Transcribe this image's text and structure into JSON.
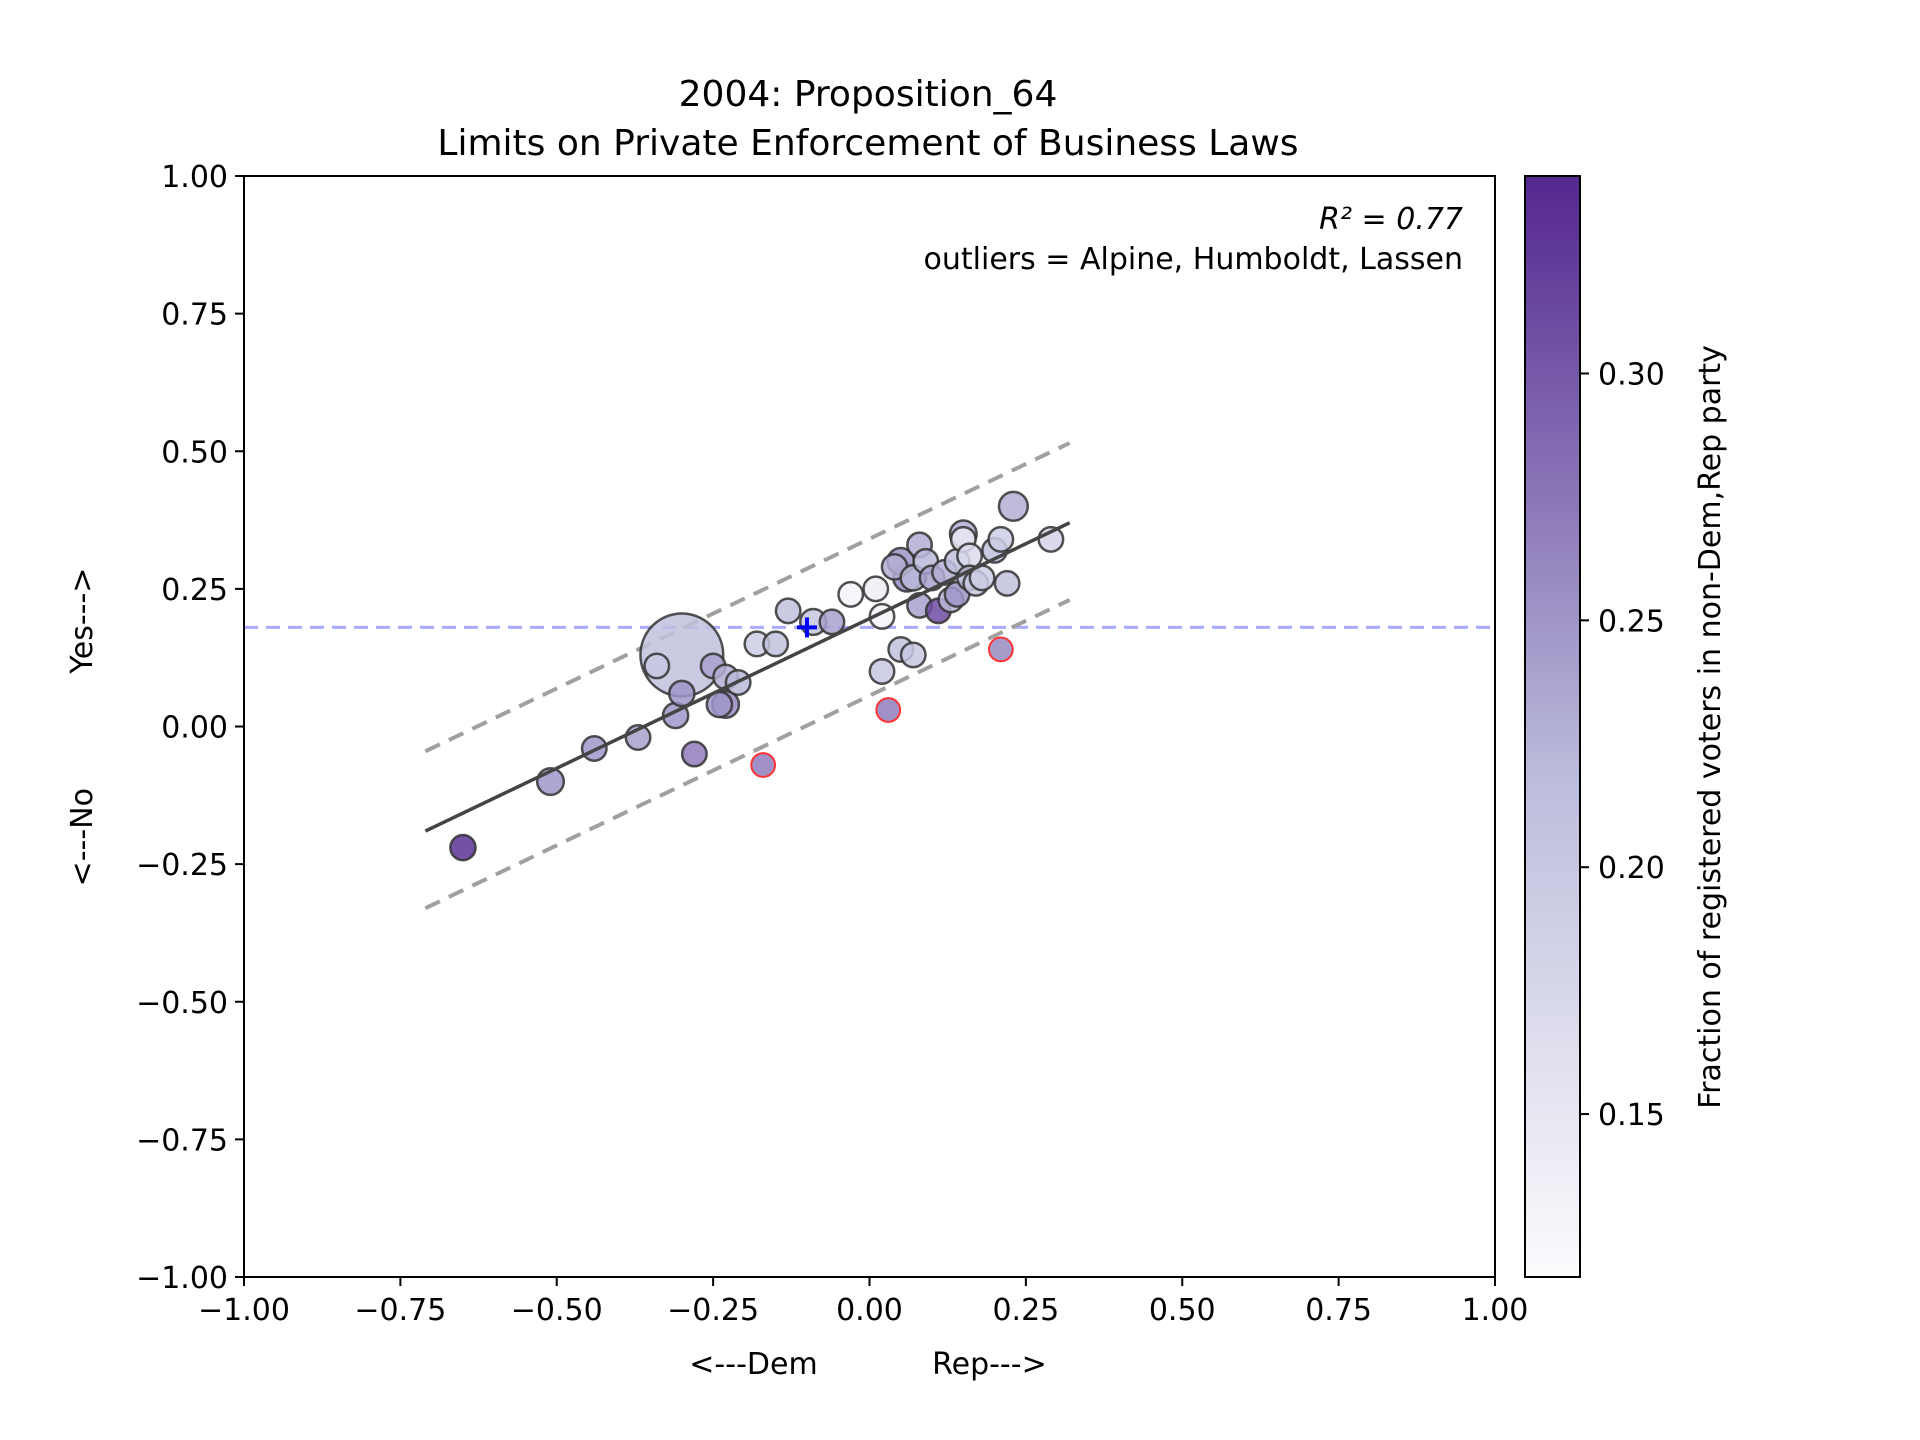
{
  "chart_data": {
    "type": "scatter",
    "title_line1": "2004: Proposition_64",
    "title_line2": "Limits on Private Enforcement of Business Laws",
    "xlabel": "<---Dem            Rep--->",
    "ylabel": "<---No            Yes--->",
    "xlim": [
      -1.0,
      1.0
    ],
    "ylim": [
      -1.0,
      1.0
    ],
    "xticks": [
      "−1.00",
      "−0.75",
      "−0.50",
      "−0.25",
      "0.00",
      "0.25",
      "0.50",
      "0.75",
      "1.00"
    ],
    "yticks": [
      "−1.00",
      "−0.75",
      "−0.50",
      "−0.25",
      "0.00",
      "0.25",
      "0.50",
      "0.75",
      "1.00"
    ],
    "xtick_values": [
      -1,
      -0.75,
      -0.5,
      -0.25,
      0,
      0.25,
      0.5,
      0.75,
      1
    ],
    "ytick_values": [
      -1,
      -0.75,
      -0.5,
      -0.25,
      0,
      0.25,
      0.5,
      0.75,
      1
    ],
    "annotation_r2": "R² = 0.77",
    "annotation_outliers": "outliers = Alpine, Humboldt, Lassen",
    "state_line_y": 0.18,
    "state_marker": {
      "x": -0.1,
      "y": 0.18
    },
    "fit_line": {
      "x": [
        -0.71,
        0.32
      ],
      "y": [
        -0.19,
        0.37
      ]
    },
    "upper_band": {
      "x": [
        -0.71,
        0.32
      ],
      "y": [
        -0.045,
        0.515
      ]
    },
    "lower_band": {
      "x": [
        -0.71,
        0.32
      ],
      "y": [
        -0.33,
        0.23
      ]
    },
    "colorbar": {
      "label": "Fraction of registered voters in non-Dem,Rep party",
      "range": [
        0.117,
        0.34
      ],
      "ticks": [
        0.15,
        0.2,
        0.25,
        0.3
      ],
      "tick_labels": [
        "0.15",
        "0.20",
        "0.25",
        "0.30"
      ]
    },
    "colors": {
      "low": "#fcfbfd",
      "mid": "#bcbddc",
      "high": "#54278f",
      "state_line": "#aaaaff",
      "state_marker": "#0000ff",
      "fit": "#444444",
      "band": "#a0a0a0",
      "outlier_edge": "#ff3333"
    },
    "points": [
      {
        "x": -0.3,
        "y": 0.13,
        "s": 0.9,
        "c": 0.21
      },
      {
        "x": -0.65,
        "y": -0.22,
        "s": 0.1,
        "c": 0.33
      },
      {
        "x": -0.51,
        "y": -0.1,
        "s": 0.12,
        "c": 0.25
      },
      {
        "x": -0.44,
        "y": -0.04,
        "s": 0.09,
        "c": 0.25
      },
      {
        "x": -0.37,
        "y": -0.02,
        "s": 0.09,
        "c": 0.24
      },
      {
        "x": -0.34,
        "y": 0.11,
        "s": 0.09,
        "c": 0.2
      },
      {
        "x": -0.31,
        "y": 0.02,
        "s": 0.1,
        "c": 0.25
      },
      {
        "x": -0.3,
        "y": 0.06,
        "s": 0.1,
        "c": 0.25
      },
      {
        "x": -0.28,
        "y": -0.05,
        "s": 0.09,
        "c": 0.27
      },
      {
        "x": -0.25,
        "y": 0.11,
        "s": 0.09,
        "c": 0.24
      },
      {
        "x": -0.24,
        "y": 0.04,
        "s": 0.1,
        "c": 0.25
      },
      {
        "x": -0.23,
        "y": 0.04,
        "s": 0.12,
        "c": 0.26
      },
      {
        "x": -0.23,
        "y": 0.09,
        "s": 0.09,
        "c": 0.23
      },
      {
        "x": -0.21,
        "y": 0.08,
        "s": 0.09,
        "c": 0.22
      },
      {
        "x": -0.18,
        "y": 0.15,
        "s": 0.09,
        "c": 0.19
      },
      {
        "x": -0.15,
        "y": 0.15,
        "s": 0.09,
        "c": 0.21
      },
      {
        "x": -0.13,
        "y": 0.21,
        "s": 0.09,
        "c": 0.21
      },
      {
        "x": -0.09,
        "y": 0.19,
        "s": 0.11,
        "c": 0.2
      },
      {
        "x": -0.06,
        "y": 0.19,
        "s": 0.09,
        "c": 0.24
      },
      {
        "x": -0.03,
        "y": 0.24,
        "s": 0.09,
        "c": 0.13
      },
      {
        "x": 0.01,
        "y": 0.25,
        "s": 0.09,
        "c": 0.14
      },
      {
        "x": 0.02,
        "y": 0.2,
        "s": 0.09,
        "c": 0.13
      },
      {
        "x": 0.02,
        "y": 0.1,
        "s": 0.09,
        "c": 0.2
      },
      {
        "x": 0.04,
        "y": 0.29,
        "s": 0.1,
        "c": 0.23
      },
      {
        "x": 0.05,
        "y": 0.3,
        "s": 0.12,
        "c": 0.25
      },
      {
        "x": 0.05,
        "y": 0.14,
        "s": 0.09,
        "c": 0.21
      },
      {
        "x": 0.06,
        "y": 0.27,
        "s": 0.13,
        "c": 0.26
      },
      {
        "x": 0.07,
        "y": 0.27,
        "s": 0.1,
        "c": 0.22
      },
      {
        "x": 0.07,
        "y": 0.13,
        "s": 0.09,
        "c": 0.2
      },
      {
        "x": 0.08,
        "y": 0.33,
        "s": 0.09,
        "c": 0.23
      },
      {
        "x": 0.08,
        "y": 0.22,
        "s": 0.09,
        "c": 0.24
      },
      {
        "x": 0.09,
        "y": 0.3,
        "s": 0.09,
        "c": 0.22
      },
      {
        "x": 0.1,
        "y": 0.27,
        "s": 0.09,
        "c": 0.24
      },
      {
        "x": 0.11,
        "y": 0.21,
        "s": 0.09,
        "c": 0.31
      },
      {
        "x": 0.12,
        "y": 0.28,
        "s": 0.09,
        "c": 0.23
      },
      {
        "x": 0.13,
        "y": 0.23,
        "s": 0.09,
        "c": 0.22
      },
      {
        "x": 0.14,
        "y": 0.3,
        "s": 0.09,
        "c": 0.21
      },
      {
        "x": 0.14,
        "y": 0.24,
        "s": 0.09,
        "c": 0.25
      },
      {
        "x": 0.15,
        "y": 0.35,
        "s": 0.12,
        "c": 0.23
      },
      {
        "x": 0.15,
        "y": 0.34,
        "s": 0.09,
        "c": 0.15
      },
      {
        "x": 0.16,
        "y": 0.31,
        "s": 0.09,
        "c": 0.17
      },
      {
        "x": 0.16,
        "y": 0.27,
        "s": 0.09,
        "c": 0.22
      },
      {
        "x": 0.17,
        "y": 0.26,
        "s": 0.09,
        "c": 0.2
      },
      {
        "x": 0.18,
        "y": 0.27,
        "s": 0.09,
        "c": 0.19
      },
      {
        "x": 0.2,
        "y": 0.32,
        "s": 0.09,
        "c": 0.21
      },
      {
        "x": 0.21,
        "y": 0.34,
        "s": 0.09,
        "c": 0.19
      },
      {
        "x": 0.22,
        "y": 0.26,
        "s": 0.09,
        "c": 0.21
      },
      {
        "x": 0.23,
        "y": 0.4,
        "s": 0.15,
        "c": 0.23
      },
      {
        "x": 0.29,
        "y": 0.34,
        "s": 0.09,
        "c": 0.18
      },
      {
        "x": -0.17,
        "y": -0.07,
        "s": 0.08,
        "c": 0.27,
        "outlier": true
      },
      {
        "x": 0.03,
        "y": 0.03,
        "s": 0.08,
        "c": 0.27,
        "outlier": true
      },
      {
        "x": 0.21,
        "y": 0.14,
        "s": 0.08,
        "c": 0.26,
        "outlier": true
      }
    ]
  }
}
